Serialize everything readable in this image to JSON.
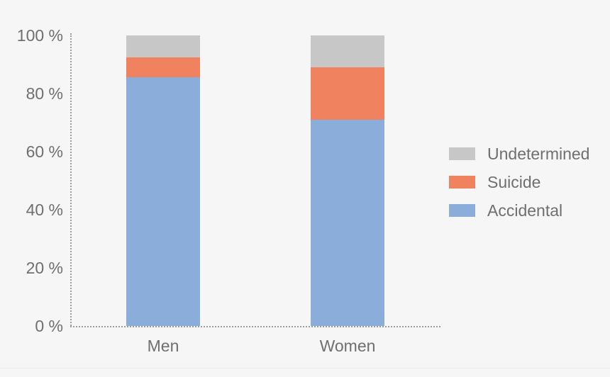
{
  "chart_data": {
    "type": "bar",
    "stacked": true,
    "title": "",
    "xlabel": "",
    "ylabel": "",
    "ylim": [
      0,
      100
    ],
    "grid": false,
    "legend_position": "right",
    "categories": [
      "Men",
      "Women"
    ],
    "series": [
      {
        "name": "Accidental",
        "color": "#8badda",
        "values": [
          85.5,
          71
        ]
      },
      {
        "name": "Suicide",
        "color": "#f0825f",
        "values": [
          7,
          18
        ]
      },
      {
        "name": "Undetermined",
        "color": "#c7c7c7",
        "values": [
          7.5,
          11
        ]
      }
    ],
    "legend_order_top_to_bottom": [
      "Undetermined",
      "Suicide",
      "Accidental"
    ],
    "y_ticks": [
      {
        "value": 100,
        "label": "100 %"
      },
      {
        "value": 80,
        "label": "80 %"
      },
      {
        "value": 60,
        "label": "60 %"
      },
      {
        "value": 40,
        "label": "40 %"
      },
      {
        "value": 20,
        "label": "20 %"
      },
      {
        "value": 0,
        "label": "0 %"
      }
    ]
  },
  "colors": {
    "background": "#f6f6f6",
    "axis_dotted_line": "#9b9b9b",
    "text": "#6f6f6f",
    "accidental": "#8badda",
    "suicide": "#f0825f",
    "undetermined": "#c7c7c7"
  }
}
